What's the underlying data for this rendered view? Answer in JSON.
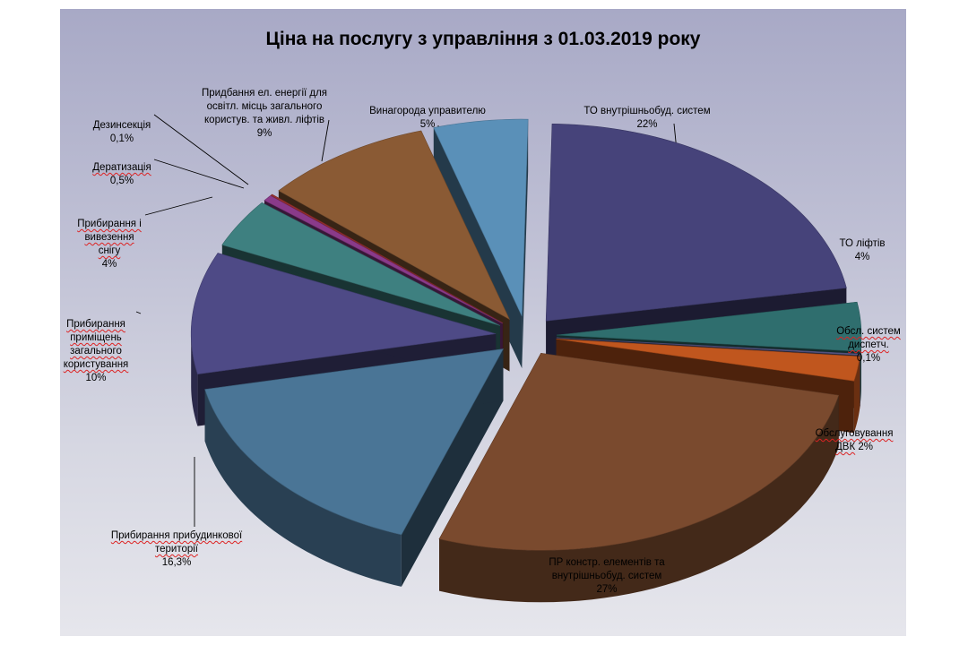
{
  "chart_data": {
    "type": "pie",
    "title": "Ціна на послугу  з  управління з  01.03.2019 року",
    "slices": [
      {
        "label": "ТО внутрішньобуд. систем",
        "pct_text": "22%",
        "value": 22,
        "color": "#46437a"
      },
      {
        "label": "ТО ліфтів",
        "pct_text": "4%",
        "value": 4,
        "color": "#2f6e6e"
      },
      {
        "label": "Обсл. систем диспетч.",
        "pct_text": "0,1%",
        "value": 0.1,
        "color": "#5a5a8a"
      },
      {
        "label": "Обслуговування ДВК",
        "pct_text": "2%",
        "value": 2,
        "color": "#c0561e"
      },
      {
        "label": "ПР констр. елементів та внутрішньобуд. систем",
        "pct_text": "27%",
        "value": 27,
        "color": "#7a4a2e"
      },
      {
        "label": "Прибирання прибудинкової території",
        "pct_text": "16,3%",
        "value": 16.3,
        "color": "#4a7596"
      },
      {
        "label": "Прибирання приміщень загального користування",
        "pct_text": "10%",
        "value": 10,
        "color": "#4e4a86"
      },
      {
        "label": "Прибирання і вивезення снігу",
        "pct_text": "4%",
        "value": 4,
        "color": "#3e8080"
      },
      {
        "label": "Дератизація",
        "pct_text": "0,5%",
        "value": 0.5,
        "color": "#8a3a8a"
      },
      {
        "label": "Дезинсекція",
        "pct_text": "0,1%",
        "value": 0.1,
        "color": "#9a3030"
      },
      {
        "label": "Придбання ел. енергії для освітл. місць загального користув. та живл. ліфтів",
        "pct_text": "9%",
        "value": 9,
        "color": "#8a5a34"
      },
      {
        "label": "Винагорода управителю",
        "pct_text": "5%",
        "value": 5,
        "color": "#5a90b8"
      }
    ]
  },
  "labels": {
    "to_vnutr": {
      "name": "ТО внутрішньобуд.  систем",
      "pct": "22%"
    },
    "to_lift": {
      "name": "ТО ліфтів",
      "pct": "4%"
    },
    "dispetch": {
      "name": "Обсл. систем\nдиспетч.",
      "pct": "0,1%"
    },
    "dvk": {
      "name": "Обслуговування\nДВК",
      "pct": "2%"
    },
    "pr_konstr": {
      "name": "ПР констр. елементів та\nвнутрішньобуд. систем",
      "pct": "27%"
    },
    "pryb_ter": {
      "name": "Прибирання прибудинкової\nтериторії",
      "pct": "16,3%"
    },
    "pryb_prym": {
      "name": "Прибирання\nприміщень\nзагального\nкористування",
      "pct": "10%"
    },
    "snig": {
      "name": "Прибирання і\nвивезення\nснігу",
      "pct": "4%"
    },
    "derat": {
      "name": "Дератизація",
      "pct": "0,5%"
    },
    "dezins": {
      "name": "Дезинсекція",
      "pct": "0,1%"
    },
    "energy": {
      "name": "Придбання ел. енергії для\nосвітл. місць загального\nкористув. та живл. ліфтів",
      "pct": "9%"
    },
    "vynag": {
      "name": "Винагорода управителю",
      "pct": "5%"
    }
  }
}
